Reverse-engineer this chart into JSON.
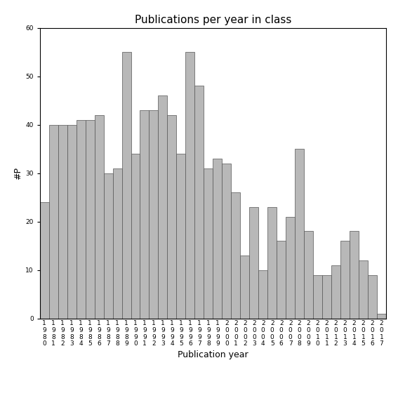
{
  "title": "Publications per year in class",
  "xlabel": "Publication year",
  "ylabel": "#P",
  "years": [
    1980,
    1981,
    1982,
    1983,
    1984,
    1985,
    1986,
    1987,
    1988,
    1989,
    1990,
    1991,
    1992,
    1993,
    1994,
    1995,
    1996,
    1997,
    1998,
    1999,
    2000,
    2001,
    2002,
    2003,
    2004,
    2005,
    2006,
    2007,
    2008,
    2009,
    2010,
    2011,
    2012,
    2013,
    2014,
    2015,
    2016,
    2017
  ],
  "values": [
    24,
    40,
    40,
    40,
    41,
    41,
    42,
    30,
    31,
    55,
    34,
    43,
    43,
    46,
    42,
    34,
    55,
    48,
    31,
    33,
    32,
    26,
    13,
    23,
    10,
    23,
    16,
    21,
    35,
    18,
    9,
    9,
    11,
    16,
    18,
    12,
    9,
    1
  ],
  "bar_color": "#b8b8b8",
  "bar_edge_color": "#555555",
  "bar_edge_width": 0.5,
  "ylim": [
    0,
    60
  ],
  "yticks": [
    0,
    10,
    20,
    30,
    40,
    50,
    60
  ],
  "bg_color": "#ffffff",
  "title_fontsize": 11,
  "label_fontsize": 9,
  "tick_fontsize": 6.5
}
